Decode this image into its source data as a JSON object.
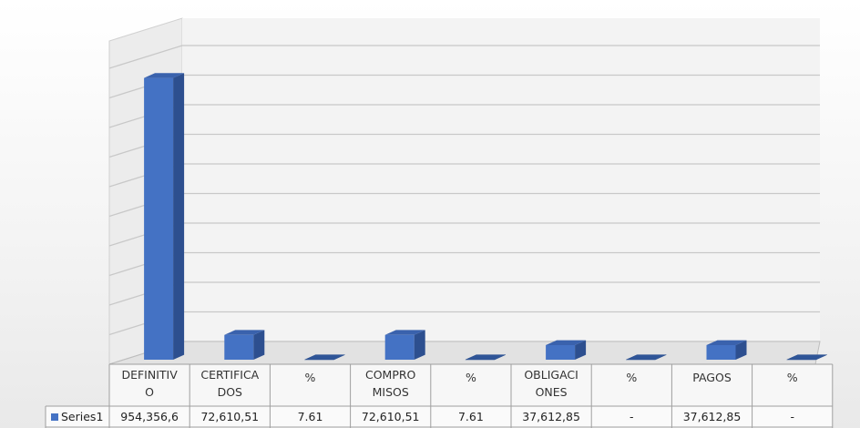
{
  "chart_data": {
    "type": "bar",
    "categories": [
      "DEFINITIVO",
      "CERTIFICADOS",
      "%",
      "COMPROMISOS",
      "%",
      "OBLIGACIONES",
      "%",
      "PAGOS",
      "%"
    ],
    "category_lines": [
      [
        "DEFINITIV",
        "O"
      ],
      [
        "CERTIFICA",
        "DOS"
      ],
      [
        "%"
      ],
      [
        "COMPRO",
        "MISOS"
      ],
      [
        "%"
      ],
      [
        "OBLIGACI",
        "ONES"
      ],
      [
        "%"
      ],
      [
        "PAGOS"
      ],
      [
        "%"
      ]
    ],
    "series": [
      {
        "name": "Series1",
        "values": [
          954356.6,
          72610.51,
          7.61,
          72610.51,
          7.61,
          37612.85,
          0,
          37612.85,
          0
        ],
        "labels": [
          "954,356,6",
          "72,610,51",
          "7.61",
          "72,610,51",
          "7.61",
          "37,612,85",
          "-",
          "37,612,85",
          "-"
        ],
        "color": "#4472c4"
      }
    ],
    "ylim": [
      0,
      1000000
    ],
    "grid": true,
    "legend": "table",
    "data_table": true
  }
}
